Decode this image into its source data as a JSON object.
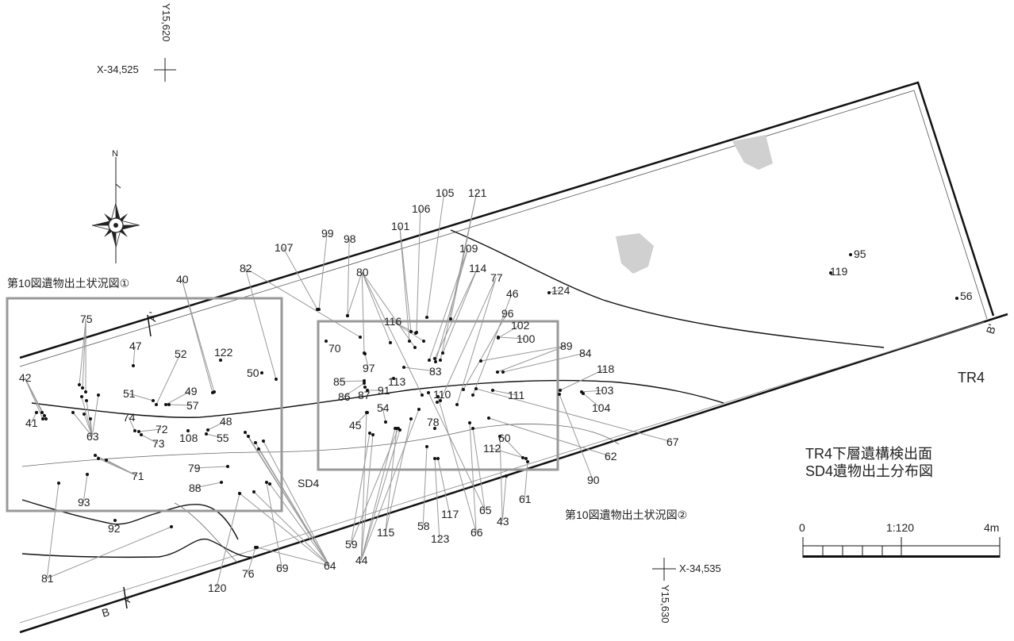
{
  "grid": {
    "x_top": "X-34,525",
    "y_top": "Y15,620",
    "x_bottom": "X-34,535",
    "y_bottom": "Y15,630"
  },
  "north": "N",
  "box1_caption": "第10図遺物出土状況図①",
  "box2_caption": "第10図遺物出土状況図②",
  "feature_label": "SD4",
  "trench_label": "TR4",
  "section_labels": {
    "a": "A",
    "a_prime": "A'",
    "b": "B",
    "b_prime": "B'"
  },
  "title_line1": "TR4下層遺構検出面",
  "title_line2": "SD4遺物出土分布図",
  "scale": {
    "start": "0",
    "ratio": "1:120",
    "end": "4m"
  },
  "finds": [
    "40",
    "41",
    "42",
    "43",
    "44",
    "45",
    "46",
    "47",
    "48",
    "49",
    "50",
    "51",
    "52",
    "54",
    "55",
    "56",
    "57",
    "58",
    "59",
    "60",
    "61",
    "62",
    "63",
    "64",
    "65",
    "66",
    "67",
    "69",
    "70",
    "71",
    "72",
    "73",
    "74",
    "75",
    "76",
    "77",
    "78",
    "79",
    "80",
    "81",
    "82",
    "83",
    "84",
    "85",
    "86",
    "87",
    "88",
    "89",
    "90",
    "91",
    "92",
    "93",
    "95",
    "96",
    "97",
    "98",
    "99",
    "100",
    "101",
    "102",
    "103",
    "104",
    "105",
    "106",
    "107",
    "108",
    "109",
    "110",
    "111",
    "112",
    "113",
    "114",
    "115",
    "116",
    "117",
    "118",
    "119",
    "120",
    "121",
    "122",
    "123",
    "124"
  ]
}
